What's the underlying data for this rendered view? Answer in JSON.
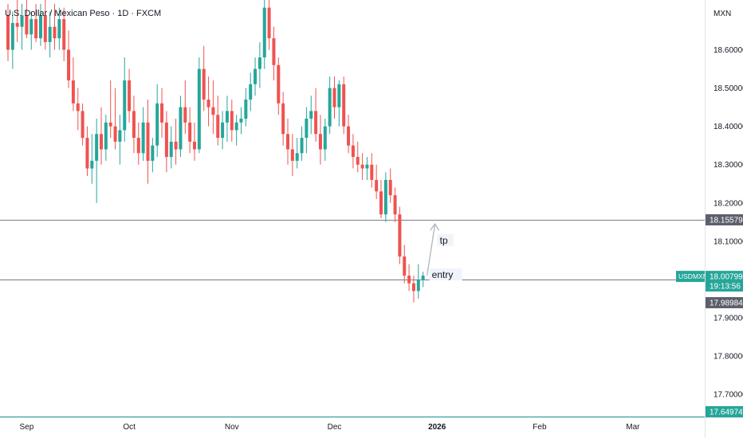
{
  "chart_data": {
    "type": "candlestick",
    "title": "U.S. Dollar / Mexican Peso · 1D · FXCM",
    "currency_label": "MXN",
    "symbol": "USDMXN",
    "y_range": [
      17.64,
      18.73
    ],
    "y_ticks": [
      {
        "value": 18.6,
        "label": "18.60000"
      },
      {
        "value": 18.5,
        "label": "18.50000"
      },
      {
        "value": 18.4,
        "label": "18.40000"
      },
      {
        "value": 18.3,
        "label": "18.30000"
      },
      {
        "value": 18.2,
        "label": "18.20000"
      },
      {
        "value": 18.1,
        "label": "18.10000"
      },
      {
        "value": 17.9,
        "label": "17.90000"
      },
      {
        "value": 17.8,
        "label": "17.80000"
      },
      {
        "value": 17.7,
        "label": "17.70000"
      }
    ],
    "x_ticks": [
      "Sep",
      "Oct",
      "Nov",
      "Dec",
      "2026",
      "Feb",
      "Mar"
    ],
    "x_tick_index": [
      4,
      26,
      48,
      70,
      92,
      114,
      134
    ],
    "bullish_color": "#26a69a",
    "bearish_color": "#ef5350",
    "horizontal_lines": [
      {
        "value": 18.15579,
        "label": "18.15579"
      },
      {
        "value": 18.0,
        "label": ""
      }
    ],
    "price_badges": [
      {
        "label": "18.00799",
        "value": 18.00799,
        "color": "#26a69a",
        "symbol": "USDMXN"
      },
      {
        "label": "19:13:56",
        "value": 17.995,
        "color": "#26a69a"
      },
      {
        "label": "17.98984",
        "value": 17.98984,
        "color": "#5d606b"
      },
      {
        "label": "17.64974",
        "value": 17.64974,
        "color": "#26a69a"
      }
    ],
    "annotations": [
      {
        "text": "tp",
        "value": 18.1
      },
      {
        "text": "entry",
        "value": 18.01
      }
    ],
    "candles": [
      [
        18.69,
        18.72,
        18.57,
        18.6
      ],
      [
        18.6,
        18.7,
        18.55,
        18.67
      ],
      [
        18.67,
        18.73,
        18.62,
        18.66
      ],
      [
        18.66,
        18.72,
        18.6,
        18.69
      ],
      [
        18.69,
        18.73,
        18.63,
        18.64
      ],
      [
        18.64,
        18.7,
        18.6,
        18.68
      ],
      [
        18.68,
        18.72,
        18.62,
        18.63
      ],
      [
        18.63,
        18.72,
        18.61,
        18.69
      ],
      [
        18.69,
        18.73,
        18.6,
        18.62
      ],
      [
        18.62,
        18.7,
        18.58,
        18.66
      ],
      [
        18.66,
        18.72,
        18.6,
        18.63
      ],
      [
        18.63,
        18.71,
        18.6,
        18.68
      ],
      [
        18.68,
        18.71,
        18.57,
        18.6
      ],
      [
        18.6,
        18.65,
        18.5,
        18.52
      ],
      [
        18.52,
        18.58,
        18.44,
        18.46
      ],
      [
        18.46,
        18.5,
        18.39,
        18.44
      ],
      [
        18.44,
        18.46,
        18.35,
        18.37
      ],
      [
        18.37,
        18.4,
        18.27,
        18.29
      ],
      [
        18.29,
        18.38,
        18.25,
        18.31
      ],
      [
        18.31,
        18.42,
        18.2,
        18.38
      ],
      [
        18.38,
        18.45,
        18.3,
        18.34
      ],
      [
        18.34,
        18.43,
        18.31,
        18.41
      ],
      [
        18.41,
        18.52,
        18.37,
        18.4
      ],
      [
        18.4,
        18.5,
        18.34,
        18.36
      ],
      [
        18.36,
        18.43,
        18.3,
        18.39
      ],
      [
        18.39,
        18.58,
        18.36,
        18.52
      ],
      [
        18.52,
        18.55,
        18.41,
        18.44
      ],
      [
        18.44,
        18.48,
        18.33,
        18.37
      ],
      [
        18.37,
        18.41,
        18.3,
        18.33
      ],
      [
        18.33,
        18.45,
        18.31,
        18.41
      ],
      [
        18.41,
        18.47,
        18.25,
        18.31
      ],
      [
        18.31,
        18.37,
        18.28,
        18.35
      ],
      [
        18.35,
        18.51,
        18.32,
        18.46
      ],
      [
        18.46,
        18.5,
        18.37,
        18.41
      ],
      [
        18.41,
        18.44,
        18.28,
        18.32
      ],
      [
        18.32,
        18.4,
        18.29,
        18.36
      ],
      [
        18.36,
        18.42,
        18.3,
        18.34
      ],
      [
        18.34,
        18.48,
        18.32,
        18.45
      ],
      [
        18.45,
        18.52,
        18.38,
        18.41
      ],
      [
        18.41,
        18.45,
        18.33,
        18.36
      ],
      [
        18.36,
        18.41,
        18.31,
        18.34
      ],
      [
        18.34,
        18.58,
        18.33,
        18.55
      ],
      [
        18.55,
        18.61,
        18.44,
        18.47
      ],
      [
        18.47,
        18.53,
        18.4,
        18.45
      ],
      [
        18.45,
        18.52,
        18.38,
        18.43
      ],
      [
        18.43,
        18.48,
        18.35,
        18.37
      ],
      [
        18.37,
        18.44,
        18.34,
        18.41
      ],
      [
        18.41,
        18.48,
        18.36,
        18.44
      ],
      [
        18.44,
        18.47,
        18.36,
        18.39
      ],
      [
        18.39,
        18.43,
        18.35,
        18.41
      ],
      [
        18.41,
        18.45,
        18.38,
        18.42
      ],
      [
        18.42,
        18.5,
        18.4,
        18.47
      ],
      [
        18.47,
        18.54,
        18.44,
        18.51
      ],
      [
        18.51,
        18.58,
        18.48,
        18.55
      ],
      [
        18.55,
        18.62,
        18.5,
        18.58
      ],
      [
        18.58,
        18.73,
        18.55,
        18.71
      ],
      [
        18.71,
        18.73,
        18.6,
        18.63
      ],
      [
        18.63,
        18.66,
        18.52,
        18.56
      ],
      [
        18.56,
        18.58,
        18.43,
        18.46
      ],
      [
        18.46,
        18.49,
        18.35,
        18.38
      ],
      [
        18.38,
        18.42,
        18.3,
        18.34
      ],
      [
        18.34,
        18.38,
        18.27,
        18.31
      ],
      [
        18.31,
        18.37,
        18.29,
        18.33
      ],
      [
        18.33,
        18.4,
        18.31,
        18.37
      ],
      [
        18.37,
        18.45,
        18.33,
        18.42
      ],
      [
        18.42,
        18.48,
        18.38,
        18.44
      ],
      [
        18.44,
        18.5,
        18.36,
        18.38
      ],
      [
        18.38,
        18.43,
        18.3,
        18.34
      ],
      [
        18.34,
        18.42,
        18.31,
        18.4
      ],
      [
        18.4,
        18.53,
        18.38,
        18.5
      ],
      [
        18.5,
        18.53,
        18.42,
        18.45
      ],
      [
        18.45,
        18.52,
        18.4,
        18.51
      ],
      [
        18.51,
        18.53,
        18.38,
        18.4
      ],
      [
        18.4,
        18.43,
        18.33,
        18.35
      ],
      [
        18.35,
        18.38,
        18.29,
        18.32
      ],
      [
        18.32,
        18.36,
        18.28,
        18.3
      ],
      [
        18.3,
        18.33,
        18.26,
        18.29
      ],
      [
        18.29,
        18.32,
        18.26,
        18.3
      ],
      [
        18.3,
        18.33,
        18.24,
        18.26
      ],
      [
        18.26,
        18.3,
        18.21,
        18.23
      ],
      [
        18.23,
        18.26,
        18.16,
        18.17
      ],
      [
        18.17,
        18.28,
        18.15,
        18.26
      ],
      [
        18.26,
        18.29,
        18.2,
        18.22
      ],
      [
        18.22,
        18.24,
        18.15,
        18.17
      ],
      [
        18.17,
        18.19,
        18.04,
        18.06
      ],
      [
        18.06,
        18.09,
        17.99,
        18.01
      ],
      [
        18.01,
        18.04,
        17.97,
        17.99
      ],
      [
        17.99,
        18.01,
        17.94,
        17.97
      ],
      [
        17.97,
        18.04,
        17.95,
        18.0
      ],
      [
        18.0,
        18.02,
        17.98,
        18.01
      ]
    ]
  }
}
